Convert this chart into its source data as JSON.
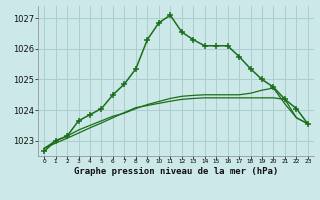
{
  "title": "Graphe pression niveau de la mer (hPa)",
  "bg_color": "#cce8e8",
  "grid_color": "#aacece",
  "line_color": "#1a6e1a",
  "ylim": [
    1022.5,
    1027.4
  ],
  "yticks": [
    1023,
    1024,
    1025,
    1026,
    1027
  ],
  "x_labels": [
    "0",
    "1",
    "2",
    "3",
    "4",
    "5",
    "6",
    "7",
    "8",
    "9",
    "10",
    "11",
    "12",
    "13",
    "14",
    "15",
    "16",
    "17",
    "18",
    "19",
    "20",
    "21",
    "22",
    "23"
  ],
  "series": {
    "line_straight1": [
      1022.75,
      1022.92,
      1023.08,
      1023.25,
      1023.42,
      1023.58,
      1023.75,
      1023.92,
      1024.08,
      1024.15,
      1024.22,
      1024.29,
      1024.35,
      1024.38,
      1024.4,
      1024.4,
      1024.4,
      1024.4,
      1024.4,
      1024.4,
      1024.4,
      1024.35,
      1023.75,
      1023.55
    ],
    "line_straight2": [
      1022.75,
      1023.0,
      1023.15,
      1023.35,
      1023.5,
      1023.65,
      1023.8,
      1023.9,
      1024.05,
      1024.18,
      1024.28,
      1024.38,
      1024.45,
      1024.48,
      1024.5,
      1024.5,
      1024.5,
      1024.5,
      1024.55,
      1024.65,
      1024.72,
      1024.2,
      1023.75,
      1023.55
    ],
    "line_main": [
      1022.65,
      1023.0,
      1023.15,
      1023.65,
      1023.85,
      1024.05,
      1024.5,
      1024.85,
      1025.35,
      1026.3,
      1026.85,
      1027.1,
      1026.55,
      1026.3,
      1026.1,
      1026.1,
      1026.1,
      1025.75,
      1025.35,
      1025.0,
      1024.75,
      1024.35,
      1024.05,
      1023.55
    ]
  }
}
